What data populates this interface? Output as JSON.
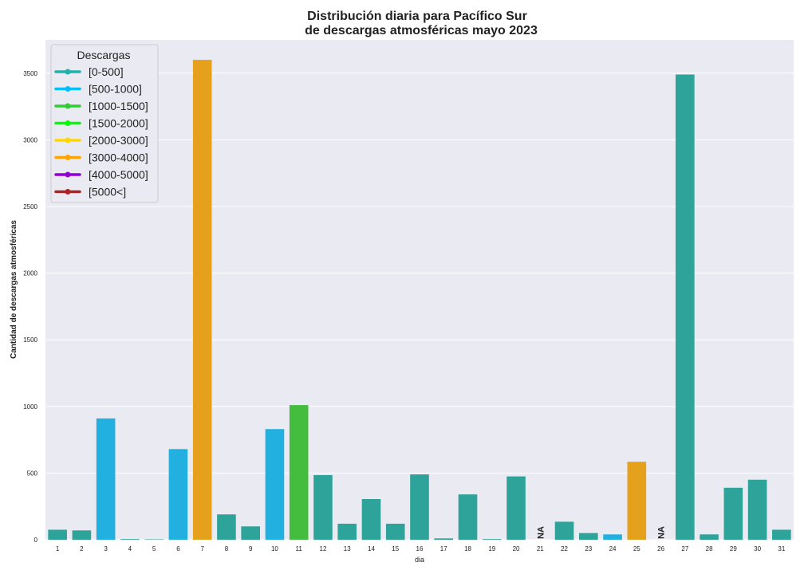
{
  "chart_data": {
    "type": "bar",
    "title_line1": "Distribución diaria para Pacífico Sur",
    "title_line2": "de descargas atmosféricas mayo 2023",
    "xlabel": "dia",
    "ylabel": "Cantidad de descargas atmosféricas",
    "ylim": [
      0,
      3750
    ],
    "yticks": [
      0,
      500,
      1000,
      1500,
      2000,
      2500,
      3000,
      3500
    ],
    "grid": true,
    "legend_position": "top-left",
    "legend_title": "Descargas",
    "legend": [
      {
        "label": "[0-500]",
        "color": "#20b2aa"
      },
      {
        "label": "[500-1000]",
        "color": "#00bfff"
      },
      {
        "label": "[1000-1500]",
        "color": "#32cd32"
      },
      {
        "label": "[1500-2000]",
        "color": "#00ff00"
      },
      {
        "label": "[2000-3000]",
        "color": "#ffd700"
      },
      {
        "label": "[3000-4000]",
        "color": "#ffa500"
      },
      {
        "label": "[4000-5000]",
        "color": "#9400d3"
      },
      {
        "label": "[5000<]",
        "color": "#b22222"
      }
    ],
    "na_label": "NA",
    "categories": [
      "1",
      "2",
      "3",
      "4",
      "5",
      "6",
      "7",
      "8",
      "9",
      "10",
      "11",
      "12",
      "13",
      "14",
      "15",
      "16",
      "17",
      "18",
      "19",
      "20",
      "21",
      "22",
      "23",
      "24",
      "25",
      "26",
      "27",
      "28",
      "29",
      "30",
      "31"
    ],
    "values": [
      75,
      70,
      910,
      5,
      3,
      680,
      3600,
      190,
      100,
      830,
      1010,
      485,
      120,
      305,
      120,
      490,
      10,
      340,
      5,
      475,
      null,
      135,
      50,
      40,
      585,
      null,
      3490,
      40,
      390,
      450,
      75
    ],
    "colors": [
      "#2ea39a",
      "#2ea39a",
      "#21b0e0",
      "#2ea39a",
      "#2ea39a",
      "#21b0e0",
      "#e5a01c",
      "#2ea39a",
      "#2ea39a",
      "#21b0e0",
      "#44bd3e",
      "#2ea39a",
      "#2ea39a",
      "#2ea39a",
      "#2ea39a",
      "#2ea39a",
      "#2ea39a",
      "#2ea39a",
      "#2ea39a",
      "#2ea39a",
      "#2ea39a",
      "#2ea39a",
      "#2ea39a",
      "#21b0e0",
      "#e5a01c",
      "#2ea39a",
      "#2ea39a",
      "#2ea39a",
      "#2ea39a",
      "#2ea39a",
      "#2ea39a"
    ]
  }
}
